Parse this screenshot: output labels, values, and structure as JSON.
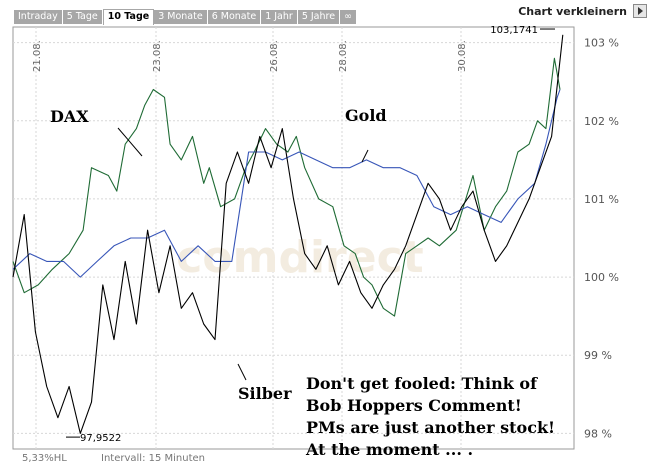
{
  "tabs": [
    {
      "label": "Intraday"
    },
    {
      "label": "5 Tage"
    },
    {
      "label": "10 Tage",
      "active": true
    },
    {
      "label": "3 Monate"
    },
    {
      "label": "6 Monate"
    },
    {
      "label": "1 Jahr"
    },
    {
      "label": "5 Jahre"
    },
    {
      "label": "∞"
    }
  ],
  "shrink_label": "Chart verkleinern",
  "chart_data": {
    "type": "line",
    "x_tick_labels": [
      "21.08.",
      "23.08.",
      "26.08.",
      "28.08.",
      "30.08."
    ],
    "y_tick_labels": [
      "103 %",
      "102 %",
      "101 %",
      "100 %",
      "99 %",
      "98 %"
    ],
    "ylim": [
      97.8,
      103.2
    ],
    "grid": true,
    "watermark": "comdirect",
    "max_label": "103,1741",
    "min_label": "97,9522",
    "max_value": 103.1741,
    "min_value": 97.9522,
    "footer_left": "5,33%HL",
    "footer_interval": "Intervall: 15 Minuten",
    "series": [
      {
        "name": "DAX",
        "color": "#1f6b35",
        "x": [
          0,
          0.02,
          0.045,
          0.07,
          0.1,
          0.125,
          0.14,
          0.17,
          0.185,
          0.2,
          0.22,
          0.235,
          0.25,
          0.27,
          0.28,
          0.3,
          0.32,
          0.34,
          0.35,
          0.37,
          0.395,
          0.415,
          0.43,
          0.45,
          0.47,
          0.49,
          0.505,
          0.52,
          0.545,
          0.57,
          0.59,
          0.61,
          0.625,
          0.64,
          0.66,
          0.68,
          0.7,
          0.72,
          0.74,
          0.76,
          0.79,
          0.82,
          0.84,
          0.86,
          0.88,
          0.9,
          0.92,
          0.935,
          0.95,
          0.965,
          0.975
        ],
        "y": [
          100.2,
          99.8,
          99.9,
          100.1,
          100.3,
          100.6,
          101.4,
          101.3,
          101.1,
          101.7,
          101.9,
          102.2,
          102.4,
          102.3,
          101.7,
          101.5,
          101.8,
          101.2,
          101.4,
          100.9,
          101.0,
          101.4,
          101.6,
          101.9,
          101.7,
          101.6,
          101.8,
          101.4,
          101.0,
          100.9,
          100.4,
          100.3,
          100.0,
          99.9,
          99.6,
          99.5,
          100.3,
          100.4,
          100.5,
          100.4,
          100.6,
          101.3,
          100.6,
          100.9,
          101.1,
          101.6,
          101.7,
          102.0,
          101.9,
          102.8,
          102.4
        ]
      },
      {
        "name": "Gold",
        "color": "#3856b8",
        "x": [
          0,
          0.03,
          0.06,
          0.09,
          0.12,
          0.15,
          0.18,
          0.21,
          0.24,
          0.27,
          0.3,
          0.33,
          0.36,
          0.39,
          0.42,
          0.45,
          0.48,
          0.51,
          0.54,
          0.57,
          0.6,
          0.63,
          0.66,
          0.69,
          0.72,
          0.75,
          0.78,
          0.81,
          0.84,
          0.87,
          0.9,
          0.93,
          0.95,
          0.97,
          0.975
        ],
        "y": [
          100.1,
          100.3,
          100.2,
          100.2,
          100.0,
          100.2,
          100.4,
          100.5,
          100.5,
          100.6,
          100.2,
          100.4,
          100.2,
          100.2,
          101.6,
          101.6,
          101.5,
          101.6,
          101.5,
          101.4,
          101.4,
          101.5,
          101.4,
          101.4,
          101.3,
          100.9,
          100.8,
          100.9,
          100.8,
          100.7,
          101.0,
          101.2,
          101.7,
          102.3,
          102.4
        ]
      },
      {
        "name": "Silber",
        "color": "#000000",
        "x": [
          0,
          0.02,
          0.04,
          0.06,
          0.08,
          0.1,
          0.12,
          0.14,
          0.16,
          0.18,
          0.2,
          0.22,
          0.24,
          0.26,
          0.28,
          0.3,
          0.32,
          0.34,
          0.36,
          0.38,
          0.4,
          0.42,
          0.44,
          0.46,
          0.48,
          0.5,
          0.52,
          0.54,
          0.56,
          0.58,
          0.6,
          0.62,
          0.64,
          0.66,
          0.68,
          0.7,
          0.72,
          0.74,
          0.76,
          0.78,
          0.8,
          0.82,
          0.84,
          0.86,
          0.88,
          0.9,
          0.92,
          0.94,
          0.96,
          0.98
        ],
        "y": [
          100.0,
          100.8,
          99.3,
          98.6,
          98.2,
          98.6,
          98.0,
          98.4,
          99.9,
          99.2,
          100.2,
          99.4,
          100.6,
          99.8,
          100.4,
          99.6,
          99.8,
          99.4,
          99.2,
          101.2,
          101.6,
          101.2,
          101.8,
          101.4,
          101.9,
          101.0,
          100.3,
          100.1,
          100.4,
          99.9,
          100.2,
          99.8,
          99.6,
          99.9,
          100.1,
          100.4,
          100.8,
          101.2,
          101.0,
          100.6,
          100.9,
          101.1,
          100.6,
          100.2,
          100.4,
          100.7,
          101.0,
          101.4,
          101.8,
          103.1
        ]
      }
    ],
    "annotations": [
      {
        "text": "DAX"
      },
      {
        "text": "Gold"
      },
      {
        "text": "Silber"
      },
      {
        "lines": [
          "Don't get fooled: Think of",
          "Bob Hoppers Comment!",
          "PMs are just another stock!",
          "At the moment ... ."
        ]
      }
    ]
  }
}
